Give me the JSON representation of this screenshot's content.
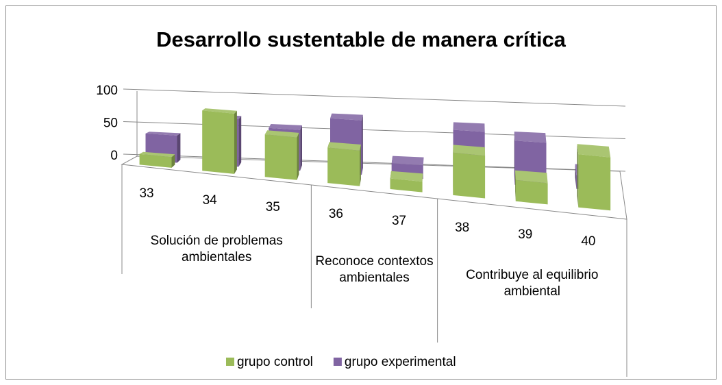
{
  "chart_data": {
    "type": "bar3d",
    "title": "Desarrollo sustentable de manera crítica",
    "category_groups": [
      {
        "name": "Solución de problemas ambientales",
        "categories": [
          "33",
          "34",
          "35"
        ]
      },
      {
        "name": "Reconoce contextos ambientales",
        "categories": [
          "36",
          "37"
        ]
      },
      {
        "name": "Contribuye al equilibrio ambiental",
        "categories": [
          "38",
          "39",
          "40"
        ]
      }
    ],
    "series": [
      {
        "name": "grupo control",
        "color": "#9bbb59",
        "values": [
          15,
          85,
          60,
          50,
          15,
          60,
          30,
          75
        ]
      },
      {
        "name": "grupo experimental",
        "color": "#8064a2",
        "values": [
          40,
          70,
          60,
          80,
          20,
          75,
          65,
          20
        ]
      }
    ],
    "ylim": [
      0,
      100
    ],
    "yticks": [
      0,
      50,
      100
    ],
    "grid": true,
    "legend": "bottom"
  }
}
